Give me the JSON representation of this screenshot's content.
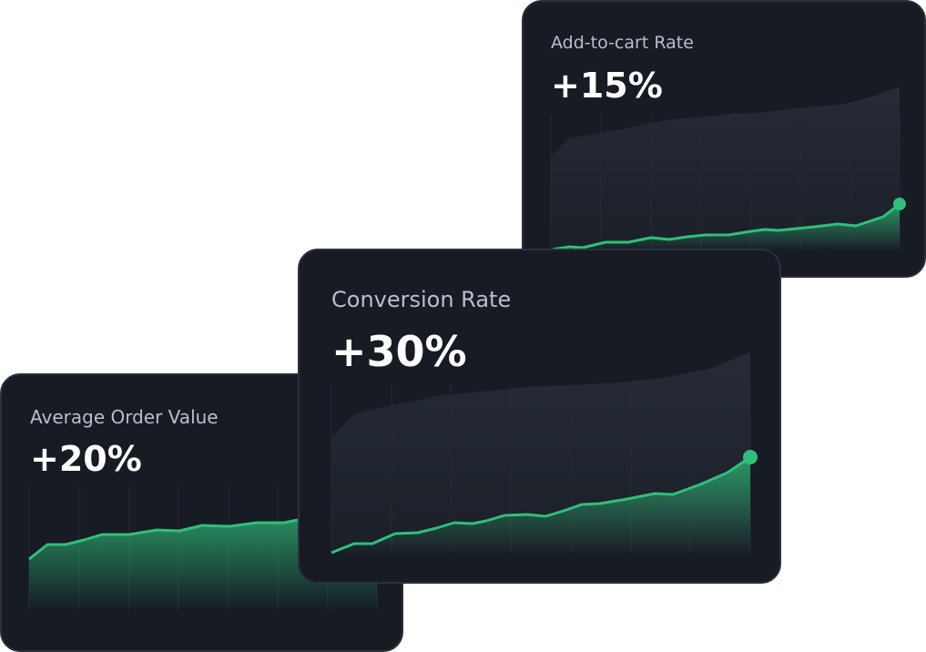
{
  "cards": [
    {
      "title": "Add-to-cart Rate",
      "value": "+15%"
    },
    {
      "title": "Conversion Rate",
      "value": "+30%"
    },
    {
      "title": "Average Order Value",
      "value": "+20%"
    }
  ]
}
